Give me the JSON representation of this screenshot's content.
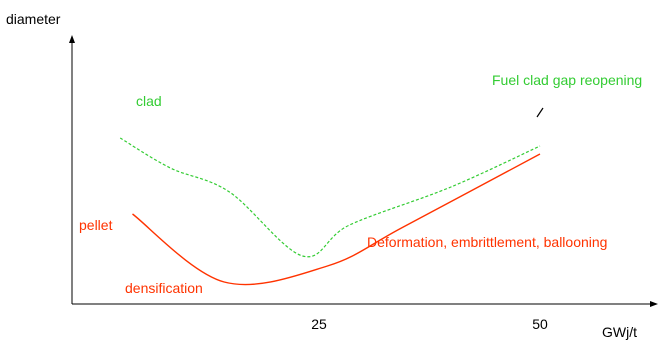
{
  "chart_data": {
    "type": "line",
    "ylabel": "diameter",
    "xlabel": "GWj/t",
    "x_ticks": [
      "25",
      "50"
    ],
    "grid": false,
    "series": [
      {
        "name": "clad",
        "color": "#33cc33",
        "dash": true,
        "points": [
          [
            2.4,
            0.58
          ],
          [
            8.1,
            0.28
          ],
          [
            14.8,
            0.04
          ],
          [
            23.1,
            -0.6
          ],
          [
            28.4,
            -0.29
          ],
          [
            39.9,
            0.09
          ],
          [
            50.0,
            0.5
          ]
        ]
      },
      {
        "name": "pellet",
        "color": "#ff3300",
        "dash": false,
        "points": [
          [
            3.8,
            -0.18
          ],
          [
            14.2,
            -0.86
          ],
          [
            25.9,
            -0.7
          ],
          [
            34.5,
            -0.31
          ],
          [
            50.0,
            0.42
          ]
        ]
      }
    ],
    "annotations": {
      "clad": "clad",
      "pellet": "pellet",
      "densification": "densification",
      "deformation": "Deformation, embrittlement, ballooning",
      "reopening": "Fuel clad gap reopening"
    }
  }
}
